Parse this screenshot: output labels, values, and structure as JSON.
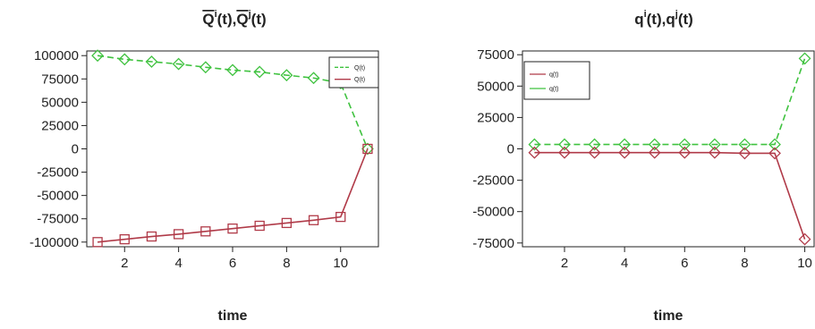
{
  "colors": {
    "red": "#b03a48",
    "green": "#3fc23f",
    "axis": "#222222"
  },
  "chart_data": [
    {
      "type": "line",
      "title_parts": [
        "Q",
        "i",
        "(t),",
        "Q",
        "j",
        "(t)"
      ],
      "title_overline": true,
      "xlabel": "time",
      "ylabel": "",
      "xlim": [
        0.6,
        11.4
      ],
      "ylim": [
        -105000,
        105000
      ],
      "x_ticks": [
        2,
        4,
        6,
        8,
        10
      ],
      "y_ticks": [
        100000,
        75000,
        50000,
        25000,
        0,
        -25000,
        -50000,
        -75000,
        -100000
      ],
      "y_tick_labels": [
        "100000",
        "75000",
        "50000",
        "25000",
        "0",
        "-25000",
        "-50000",
        "-75000",
        "-100000"
      ],
      "x": [
        1,
        2,
        3,
        4,
        5,
        6,
        7,
        8,
        9,
        10,
        11
      ],
      "legend": {
        "placement": "top-right",
        "entries": [
          {
            "label": "Q(t)",
            "color": "green",
            "style": "dashed"
          },
          {
            "label": "Q(t)",
            "color": "red",
            "style": "solid"
          }
        ]
      },
      "series": [
        {
          "color": "green",
          "style": "dashed",
          "marker": "diamond",
          "values": [
            100000,
            96000,
            93500,
            91000,
            87500,
            84500,
            82500,
            79000,
            76000,
            70500,
            0
          ]
        },
        {
          "color": "red",
          "style": "solid",
          "marker": "square",
          "values": [
            -100000,
            -97000,
            -94000,
            -91500,
            -88500,
            -85500,
            -82500,
            -79500,
            -76500,
            -73000,
            0
          ]
        }
      ]
    },
    {
      "type": "line",
      "title_parts": [
        "q",
        "i",
        "(t),",
        "q",
        "j",
        "(t)"
      ],
      "title_overline": false,
      "xlabel": "time",
      "ylabel": "",
      "xlim": [
        0.6,
        10.4
      ],
      "ylim": [
        -78000,
        78000
      ],
      "x_ticks": [
        2,
        4,
        6,
        8,
        10
      ],
      "y_ticks": [
        75000,
        50000,
        25000,
        0,
        -25000,
        -50000,
        -75000
      ],
      "y_tick_labels": [
        "75000",
        "50000",
        "25000",
        "0",
        "-25000",
        "-50000",
        "-75000"
      ],
      "x": [
        1,
        2,
        3,
        4,
        5,
        6,
        7,
        8,
        9,
        10
      ],
      "legend": {
        "placement": "top-left",
        "entries": [
          {
            "label": "q(t)",
            "color": "red",
            "style": "solid"
          },
          {
            "label": "q(t)",
            "color": "green",
            "style": "solid"
          }
        ]
      },
      "series": [
        {
          "color": "green",
          "style": "dashed",
          "marker": "diamond",
          "values": [
            3500,
            3500,
            3500,
            3500,
            3500,
            3500,
            3500,
            3500,
            3500,
            72000
          ]
        },
        {
          "color": "red",
          "style": "solid",
          "marker": "diamond",
          "values": [
            -3000,
            -3000,
            -3000,
            -3000,
            -3000,
            -3000,
            -3000,
            -3500,
            -3500,
            -72000
          ]
        }
      ]
    }
  ]
}
